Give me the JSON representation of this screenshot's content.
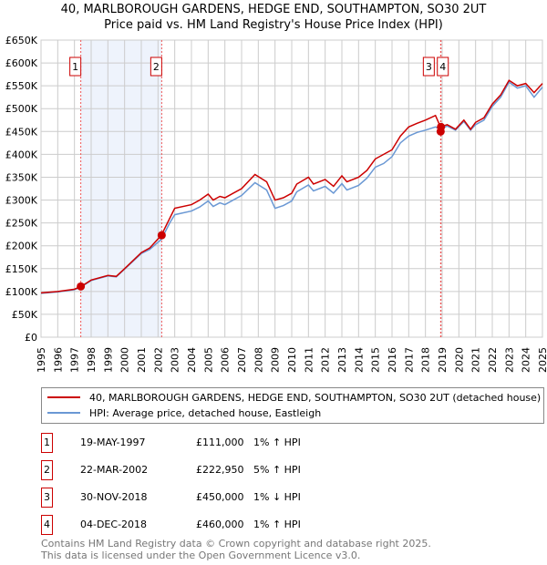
{
  "chart_data": {
    "type": "line",
    "title": "40, MARLBOROUGH GARDENS, HEDGE END, SOUTHAMPTON, SO30 2UT",
    "subtitle": "Price paid vs. HM Land Registry's House Price Index (HPI)",
    "xlim": [
      1995,
      2025
    ],
    "ylim": [
      0,
      650000
    ],
    "x_ticks": [
      "1995",
      "1996",
      "1997",
      "1998",
      "1999",
      "2000",
      "2001",
      "2002",
      "2003",
      "2004",
      "2005",
      "2006",
      "2007",
      "2008",
      "2009",
      "2010",
      "2011",
      "2012",
      "2013",
      "2014",
      "2015",
      "2016",
      "2017",
      "2018",
      "2019",
      "2020",
      "2021",
      "2022",
      "2023",
      "2024",
      "2025"
    ],
    "y_ticks": [
      "£0",
      "£50K",
      "£100K",
      "£150K",
      "£200K",
      "£250K",
      "£300K",
      "£350K",
      "£400K",
      "£450K",
      "£500K",
      "£550K",
      "£600K",
      "£650K"
    ],
    "grid": true,
    "series": [
      {
        "name": "40, MARLBOROUGH GARDENS, HEDGE END, SOUTHAMPTON, SO30 2UT (detached house)",
        "color": "#cc0000",
        "x": [
          1995,
          1996,
          1997,
          1997.4,
          1998,
          1999,
          1999.5,
          2000,
          2001,
          2001.5,
          2002.2,
          2002.7,
          2003,
          2004,
          2004.5,
          2005,
          2005.3,
          2005.7,
          2006,
          2007,
          2007.8,
          2008.5,
          2009,
          2009.5,
          2010,
          2010.3,
          2011,
          2011.3,
          2012,
          2012.5,
          2013,
          2013.3,
          2014,
          2014.5,
          2015,
          2015.5,
          2016,
          2016.5,
          2017,
          2017.5,
          2018,
          2018.6,
          2018.9,
          2019.3,
          2019.8,
          2020.3,
          2020.7,
          2021,
          2021.5,
          2022,
          2022.5,
          2023,
          2023.5,
          2024,
          2024.5,
          2025
        ],
        "y": [
          97000,
          100000,
          105000,
          111000,
          125000,
          135000,
          133000,
          150000,
          185000,
          195000,
          223000,
          260000,
          282000,
          290000,
          300000,
          313000,
          300000,
          308000,
          305000,
          325000,
          356000,
          340000,
          300000,
          305000,
          315000,
          335000,
          350000,
          335000,
          345000,
          330000,
          353000,
          340000,
          350000,
          365000,
          390000,
          400000,
          410000,
          440000,
          460000,
          468000,
          475000,
          485000,
          460000,
          465000,
          455000,
          475000,
          455000,
          470000,
          480000,
          510000,
          530000,
          562000,
          550000,
          555000,
          535000,
          555000
        ]
      },
      {
        "name": "HPI: Average price, detached house, Eastleigh",
        "color": "#6a98d4",
        "x": [
          1995,
          1996,
          1997,
          1997.4,
          1998,
          1999,
          1999.5,
          2000,
          2001,
          2001.5,
          2002.2,
          2002.7,
          2003,
          2004,
          2004.5,
          2005,
          2005.3,
          2005.7,
          2006,
          2007,
          2007.8,
          2008.5,
          2009,
          2009.5,
          2010,
          2010.3,
          2011,
          2011.3,
          2012,
          2012.5,
          2013,
          2013.3,
          2014,
          2014.5,
          2015,
          2015.5,
          2016,
          2016.5,
          2017,
          2017.5,
          2018,
          2018.6,
          2018.9,
          2019.3,
          2019.8,
          2020.3,
          2020.7,
          2021,
          2021.5,
          2022,
          2022.5,
          2023,
          2023.5,
          2024,
          2024.5,
          2025
        ],
        "y": [
          96000,
          99000,
          104000,
          110000,
          124000,
          134000,
          132000,
          149000,
          183000,
          192000,
          214000,
          250000,
          268000,
          276000,
          285000,
          298000,
          286000,
          294000,
          290000,
          310000,
          338000,
          322000,
          282000,
          288000,
          298000,
          318000,
          333000,
          320000,
          330000,
          315000,
          336000,
          322000,
          332000,
          348000,
          372000,
          380000,
          395000,
          425000,
          440000,
          448000,
          453000,
          460000,
          455000,
          462000,
          453000,
          472000,
          453000,
          465000,
          475000,
          505000,
          525000,
          558000,
          545000,
          550000,
          525000,
          547000
        ]
      }
    ],
    "sales": [
      {
        "label": "1",
        "x": 1997.38,
        "price": 111000,
        "date": "19-MAY-1997",
        "price_text": "£111,000",
        "hpi": "1% ↑ HPI"
      },
      {
        "label": "2",
        "x": 2002.22,
        "price": 222950,
        "date": "22-MAR-2002",
        "price_text": "£222,950",
        "hpi": "5% ↑ HPI"
      },
      {
        "label": "3",
        "x": 2018.91,
        "price": 450000,
        "date": "30-NOV-2018",
        "price_text": "£450,000",
        "hpi": "1% ↓ HPI"
      },
      {
        "label": "4",
        "x": 2018.93,
        "price": 460000,
        "date": "04-DEC-2018",
        "price_text": "£460,000",
        "hpi": "1% ↑ HPI"
      }
    ]
  },
  "footer": {
    "line1": "Contains HM Land Registry data © Crown copyright and database right 2025.",
    "line2": "This data is licensed under the Open Government Licence v3.0."
  }
}
